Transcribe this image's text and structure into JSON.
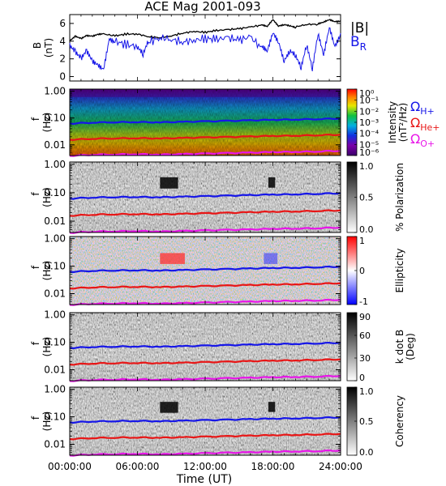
{
  "chart_data": {
    "title": "ACE Mag 2001-093",
    "xlabel": "Time (UT)",
    "xticks": [
      "00:00:00",
      "06:00:00",
      "12:00:00",
      "18:00:00",
      "24:00:00"
    ],
    "xlim_hours": [
      0,
      24
    ],
    "panels": [
      {
        "type": "line",
        "ylabel": "B",
        "yunit": "(nT)",
        "yticks": [
          "0",
          "2",
          "4",
          "6"
        ],
        "ylim": [
          -0.5,
          7
        ],
        "series": [
          {
            "name": "|B|",
            "color": "#000000",
            "x": [
              0,
              0.5,
              1,
              1.5,
              2,
              2.5,
              3,
              4,
              5,
              6,
              7,
              8,
              9,
              10,
              11,
              12,
              13,
              14,
              15,
              16,
              17,
              17.5,
              18,
              18.5,
              19,
              19.5,
              20,
              21,
              22,
              22.5,
              23,
              23.5,
              24
            ],
            "y": [
              4.1,
              4.6,
              4.3,
              4.6,
              4.5,
              4.7,
              4.8,
              4.6,
              4.8,
              4.8,
              4.5,
              4.4,
              4.6,
              4.9,
              5.1,
              5.0,
              5.2,
              5.3,
              5.4,
              5.6,
              5.8,
              5.6,
              6.4,
              5.7,
              5.9,
              5.8,
              5.6,
              5.9,
              5.9,
              6.1,
              6.4,
              6.2,
              6.3
            ]
          },
          {
            "name": "B_R",
            "color": "#1616e8",
            "x": [
              0,
              0.5,
              1,
              1.5,
              2,
              2.5,
              3,
              3.5,
              4,
              5,
              6,
              6.5,
              7,
              8,
              9,
              10,
              11,
              12,
              13,
              14,
              15,
              16,
              17,
              17.5,
              18,
              18.5,
              19,
              19.5,
              20,
              20.5,
              21,
              21.5,
              22,
              22.5,
              23,
              23.5,
              24
            ],
            "y": [
              3.8,
              3.0,
              2.1,
              2.8,
              1.5,
              1.0,
              0.6,
              4.2,
              4.0,
              3.6,
              3.4,
              2.4,
              3.9,
              4.4,
              4.2,
              3.9,
              4.1,
              4.3,
              4.2,
              4.4,
              4.1,
              4.5,
              3.2,
              2.6,
              4.8,
              3.9,
              1.9,
              3.2,
              2.7,
              1.2,
              3.6,
              0.7,
              4.6,
              2.2,
              5.4,
              3.4,
              4.9
            ]
          }
        ]
      },
      {
        "type": "heatmap",
        "ylabel": "f",
        "yunit": "(Hz)",
        "yscale": "log",
        "ylim": [
          0.004,
          1.2
        ],
        "yticks": [
          "1.00",
          "0.10",
          "0.01"
        ],
        "colorbar": {
          "label": "Intensity",
          "unit": "(nT²/Hz)",
          "ticks": [
            "10⁰",
            "10⁻¹",
            "10⁻²",
            "10⁻³",
            "10⁻⁴",
            "10⁻⁵",
            "10⁻⁶"
          ],
          "colormap": "rainbow"
        },
        "legend": [
          {
            "label": "Ω",
            "sub": "H+",
            "color": "#1616e8"
          },
          {
            "label": "Ω",
            "sub": "He+",
            "color": "#e81616"
          },
          {
            "label": "Ω",
            "sub": "O+",
            "color": "#e816e8"
          }
        ]
      },
      {
        "type": "heatmap",
        "ylabel": "f",
        "yunit": "(Hz)",
        "yscale": "log",
        "ylim": [
          0.004,
          1.2
        ],
        "yticks": [
          "1.00",
          "0.10",
          "0.01"
        ],
        "colorbar": {
          "label": "% Polarization",
          "ticks": [
            "1.0",
            "0.5",
            "0.0"
          ],
          "colormap": "gray"
        }
      },
      {
        "type": "heatmap",
        "ylabel": "f",
        "yunit": "(Hz)",
        "yscale": "log",
        "ylim": [
          0.004,
          1.2
        ],
        "yticks": [
          "1.00",
          "0.10",
          "0.01"
        ],
        "colorbar": {
          "label": "Ellipticity",
          "ticks": [
            "1",
            "0",
            "-1"
          ],
          "colormap": "blue-white-red"
        }
      },
      {
        "type": "heatmap",
        "ylabel": "f",
        "yunit": "(Hz)",
        "yscale": "log",
        "ylim": [
          0.004,
          1.2
        ],
        "yticks": [
          "1.00",
          "0.10",
          "0.01"
        ],
        "colorbar": {
          "label": "k dot B",
          "unit": "(Deg)",
          "ticks": [
            "90",
            "60",
            "30",
            "0"
          ],
          "colormap": "gray"
        }
      },
      {
        "type": "heatmap",
        "ylabel": "f",
        "yunit": "(Hz)",
        "yscale": "log",
        "ylim": [
          0.004,
          1.2
        ],
        "yticks": [
          "1.00",
          "0.10",
          "0.01"
        ],
        "colorbar": {
          "label": "Coherency",
          "ticks": [
            "1.0",
            "0.5",
            "0.0"
          ],
          "colormap": "gray"
        }
      }
    ],
    "gyrofrequency_lines": [
      {
        "ion": "H+",
        "color": "#1616e8",
        "x_hours": [
          0,
          2,
          4,
          6,
          8,
          10,
          12,
          14,
          16,
          18,
          20,
          22,
          24
        ],
        "f_hz": [
          0.062,
          0.068,
          0.07,
          0.071,
          0.069,
          0.072,
          0.075,
          0.078,
          0.082,
          0.086,
          0.088,
          0.092,
          0.096
        ]
      },
      {
        "ion": "He+",
        "color": "#e81616",
        "x_hours": [
          0,
          2,
          4,
          6,
          8,
          10,
          12,
          14,
          16,
          18,
          20,
          22,
          24
        ],
        "f_hz": [
          0.0155,
          0.017,
          0.0175,
          0.0178,
          0.0173,
          0.018,
          0.0188,
          0.0195,
          0.0205,
          0.0215,
          0.022,
          0.023,
          0.024
        ]
      },
      {
        "ion": "O+",
        "color": "#e816e8",
        "x_hours": [
          0,
          2,
          4,
          6,
          8,
          10,
          12,
          14,
          16,
          18,
          20,
          22,
          24
        ],
        "f_hz": [
          0.0039,
          0.0043,
          0.0044,
          0.0045,
          0.0043,
          0.0045,
          0.0047,
          0.0049,
          0.0051,
          0.0054,
          0.0055,
          0.0057,
          0.006
        ]
      }
    ]
  }
}
